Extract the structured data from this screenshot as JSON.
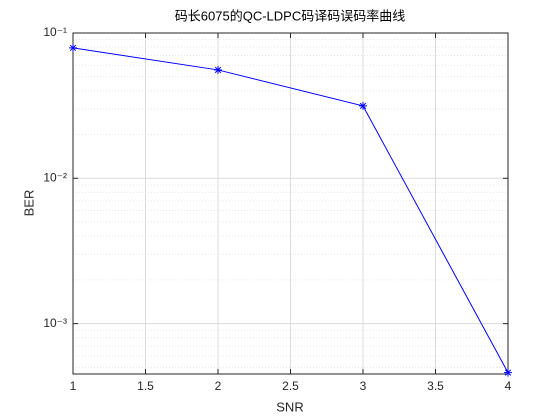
{
  "chart_data": {
    "type": "line",
    "title": "码长6075的QC-LDPC码译码误码率曲线",
    "x_label": "SNR",
    "y_label": "BER",
    "x": [
      1,
      2,
      3,
      4
    ],
    "series": [
      {
        "name": "BER",
        "color": "#0000ff",
        "marker": "*",
        "values": [
          0.079,
          0.0557,
          0.0315,
          0.00046
        ]
      }
    ],
    "xlim": [
      1,
      4
    ],
    "xticks": [
      1,
      1.5,
      2,
      2.5,
      3,
      3.5,
      4
    ],
    "ylim": [
      0.00045,
      0.1
    ],
    "y_scale": "log",
    "yticks": [
      {
        "value": 0.001,
        "label": "10⁻³"
      },
      {
        "value": 0.01,
        "label": "10⁻²"
      },
      {
        "value": 0.1,
        "label": "10⁻¹"
      }
    ],
    "grid": true,
    "minor_grid": true
  }
}
